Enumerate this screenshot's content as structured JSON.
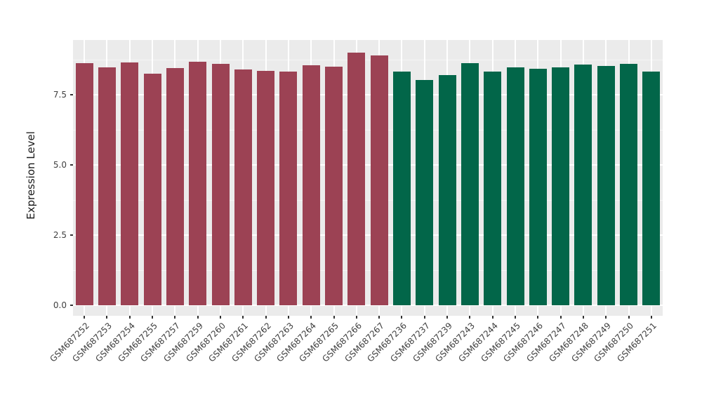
{
  "figure": {
    "background_color": "#FFFFFF",
    "panel_background_color": "#EBEBEB",
    "gridline_color": "#FFFFFF",
    "axis_text_color": "#404040",
    "tick_mark_color": "#333333"
  },
  "chart_data": {
    "type": "bar",
    "title": "",
    "xlabel": "",
    "ylabel": "Expression Level",
    "ylim": [
      0,
      9.45
    ],
    "yticks": [
      0.0,
      2.5,
      5.0,
      7.5
    ],
    "ytick_labels": [
      "0.0",
      "2.5",
      "5.0",
      "7.5"
    ],
    "grid": true,
    "legend": false,
    "categories": [
      "GSM687252",
      "GSM687253",
      "GSM687254",
      "GSM687255",
      "GSM687257",
      "GSM687259",
      "GSM687260",
      "GSM687261",
      "GSM687262",
      "GSM687263",
      "GSM687264",
      "GSM687265",
      "GSM687266",
      "GSM687267",
      "GSM687236",
      "GSM687237",
      "GSM687239",
      "GSM687243",
      "GSM687244",
      "GSM687245",
      "GSM687246",
      "GSM687247",
      "GSM687248",
      "GSM687249",
      "GSM687250",
      "GSM687251"
    ],
    "values": [
      8.63,
      8.48,
      8.66,
      8.26,
      8.45,
      8.67,
      8.59,
      8.39,
      8.35,
      8.33,
      8.56,
      8.5,
      9.0,
      8.9,
      8.33,
      8.02,
      8.21,
      8.63,
      8.33,
      8.48,
      8.42,
      8.48,
      8.57,
      8.52,
      8.6,
      8.33
    ],
    "groups": [
      "group1",
      "group1",
      "group1",
      "group1",
      "group1",
      "group1",
      "group1",
      "group1",
      "group1",
      "group1",
      "group1",
      "group1",
      "group1",
      "group1",
      "group2",
      "group2",
      "group2",
      "group2",
      "group2",
      "group2",
      "group2",
      "group2",
      "group2",
      "group2",
      "group2",
      "group2"
    ],
    "group_colors": {
      "group1": "#9C4254",
      "group2": "#026649"
    }
  }
}
